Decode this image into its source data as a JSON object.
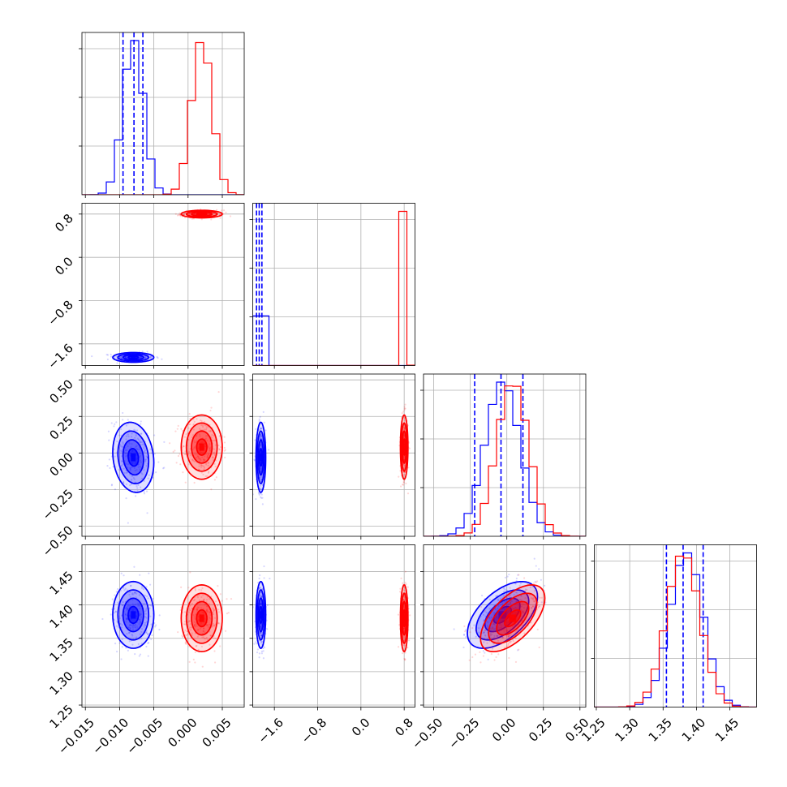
{
  "chart_data": {
    "type": "corner",
    "title": "",
    "parameters": [
      {
        "ticks": [
          -0.015,
          -0.01,
          -0.005,
          0.0,
          0.005
        ],
        "tick_labels": [
          "−0.015",
          "−0.010",
          "−0.005",
          "0.000",
          "0.005"
        ],
        "range": [
          -0.0155,
          0.0082
        ]
      },
      {
        "ticks": [
          -1.6,
          -0.8,
          0.0,
          0.8
        ],
        "tick_labels": [
          "−1.6",
          "−0.8",
          "0.0",
          "0.8"
        ],
        "range": [
          -2.0,
          1.0
        ]
      },
      {
        "ticks": [
          -0.5,
          -0.25,
          0.0,
          0.25,
          0.5
        ],
        "tick_labels": [
          "−0.50",
          "−0.25",
          "0.00",
          "0.25",
          "0.50"
        ],
        "range": [
          -0.57,
          0.54
        ]
      },
      {
        "ticks": [
          1.25,
          1.3,
          1.35,
          1.4,
          1.45
        ],
        "tick_labels": [
          "1.25",
          "1.30",
          "1.35",
          "1.40",
          "1.45"
        ],
        "range": [
          1.247,
          1.49
        ]
      }
    ],
    "series": [
      {
        "color": "#0000ff",
        "means": [
          -0.008,
          -1.85,
          -0.03,
          1.385
        ],
        "sigmas": [
          0.0015,
          0.045,
          0.12,
          0.025
        ],
        "correlations": {
          "2-3": 0.55,
          "0-2": -0.15
        },
        "quantiles": {
          "0": [
            -0.0095,
            -0.0079,
            -0.0066
          ],
          "1": [
            -1.93,
            -1.88,
            -1.83
          ],
          "2": [
            -0.22,
            -0.04,
            0.11
          ],
          "3": [
            1.355,
            1.38,
            1.41
          ]
        }
      },
      {
        "color": "#ff0000",
        "means": [
          0.002,
          0.8,
          0.04,
          1.38
        ],
        "sigmas": [
          0.0015,
          0.035,
          0.11,
          0.025
        ],
        "correlations": {
          "2-3": 0.6,
          "0-2": 0.0
        }
      }
    ],
    "histogram_bins": 20,
    "contour_levels_sigma": [
      0.5,
      1.0,
      1.5,
      2.0
    ],
    "quantiles_shown_for": "blue",
    "grid": true
  }
}
